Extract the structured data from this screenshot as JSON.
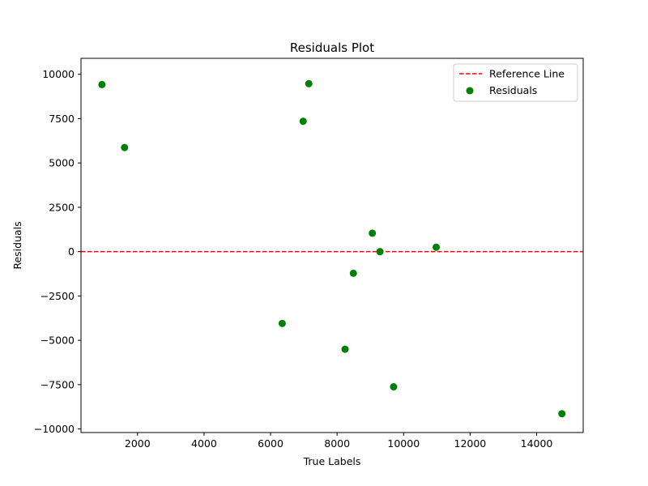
{
  "chart_data": {
    "type": "scatter",
    "title": "Residuals Plot",
    "xlabel": "True Labels",
    "ylabel": "Residuals",
    "xlim": [
      300,
      15400
    ],
    "ylim": [
      -10200,
      10900
    ],
    "xticks": [
      2000,
      4000,
      6000,
      8000,
      10000,
      12000,
      14000
    ],
    "yticks": [
      -10000,
      -7500,
      -5000,
      -2500,
      0,
      2500,
      5000,
      7500,
      10000
    ],
    "grid": false,
    "legend_position": "upper-right",
    "reference_line": {
      "name": "Reference Line",
      "y": 0,
      "style": "dashed",
      "color": "#ff0000"
    },
    "series": [
      {
        "name": "Residuals",
        "color": "#008000",
        "points": [
          {
            "x": 930,
            "y": 9420
          },
          {
            "x": 1610,
            "y": 5870
          },
          {
            "x": 6350,
            "y": -4050
          },
          {
            "x": 6980,
            "y": 7350
          },
          {
            "x": 7150,
            "y": 9470
          },
          {
            "x": 8240,
            "y": -5500
          },
          {
            "x": 8490,
            "y": -1220
          },
          {
            "x": 9060,
            "y": 1040
          },
          {
            "x": 9290,
            "y": 0
          },
          {
            "x": 9700,
            "y": -7620
          },
          {
            "x": 10980,
            "y": 250
          },
          {
            "x": 14760,
            "y": -9140
          }
        ]
      }
    ]
  }
}
